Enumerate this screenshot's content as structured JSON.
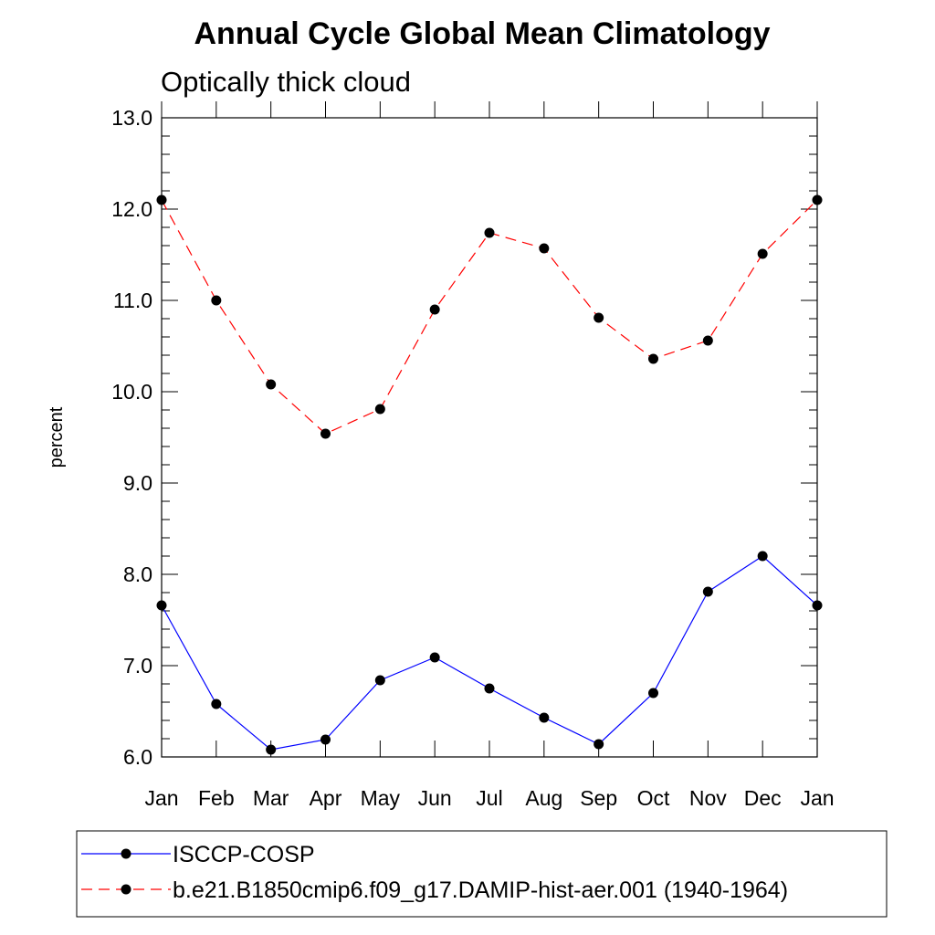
{
  "chart_data": {
    "type": "line",
    "title": "Annual Cycle Global Mean Climatology",
    "subtitle": "Optically thick cloud",
    "xlabel": "",
    "ylabel": "percent",
    "categories": [
      "Jan",
      "Feb",
      "Mar",
      "Apr",
      "May",
      "Jun",
      "Jul",
      "Aug",
      "Sep",
      "Oct",
      "Nov",
      "Dec",
      "Jan"
    ],
    "ylim": [
      6.0,
      13.0
    ],
    "y_ticks": [
      "6.0",
      "7.0",
      "8.0",
      "9.0",
      "10.0",
      "11.0",
      "12.0",
      "13.0"
    ],
    "grid": false,
    "legend_position": "bottom",
    "series": [
      {
        "name": "ISCCP-COSP",
        "color": "#0000ff",
        "line_style": "solid",
        "marker": "filled-circle",
        "values": [
          7.66,
          6.58,
          6.08,
          6.19,
          6.84,
          7.09,
          6.75,
          6.43,
          6.14,
          6.7,
          7.81,
          8.2,
          7.66
        ]
      },
      {
        "name": "b.e21.B1850cmip6.f09_g17.DAMIP-hist-aer.001 (1940-1964)",
        "color": "#ff0000",
        "line_style": "dashed",
        "marker": "filled-circle",
        "values": [
          12.1,
          11.0,
          10.08,
          9.54,
          9.81,
          10.9,
          11.74,
          11.57,
          10.81,
          10.36,
          10.56,
          11.51,
          12.1
        ]
      }
    ]
  }
}
